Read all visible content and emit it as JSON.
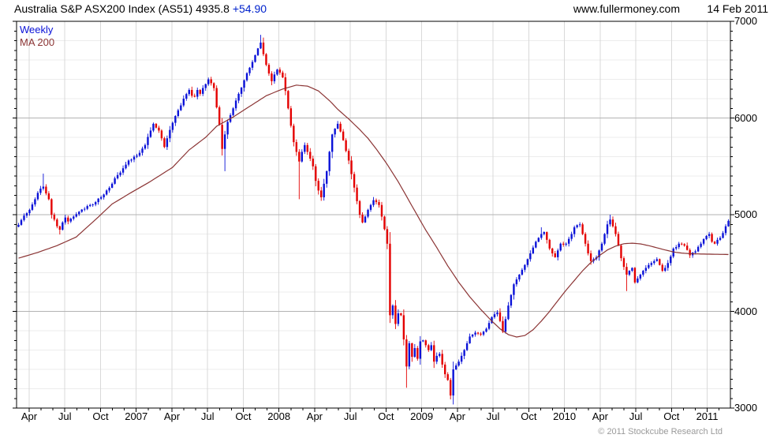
{
  "header": {
    "title": "Australia S&P ASX200 Index (AS51) 4935.8",
    "change": "+54.90",
    "site": "www.fullermoney.com",
    "date": "14 Feb 2011"
  },
  "legend": {
    "series": "Weekly",
    "ma": "MA 200"
  },
  "footer": {
    "copyright": "© 2011 Stockcube Research Ltd"
  },
  "chart_data": {
    "type": "candlestick",
    "title": "Australia S&P ASX200 Index (AS51)",
    "timeframe": "Weekly",
    "overlay": "MA 200",
    "last_price": 4935.8,
    "change": 54.9,
    "ylim": [
      3000,
      7000
    ],
    "y_ticks": [
      7000,
      6000,
      5000,
      4000,
      3000
    ],
    "y_minor_tick_step": 100,
    "y_minor_grid_step": 200,
    "x_tick_labels": [
      "Apr",
      "Jul",
      "Oct",
      "2007",
      "Apr",
      "Jul",
      "Oct",
      "2008",
      "Apr",
      "Jul",
      "Oct",
      "2009",
      "Apr",
      "Jul",
      "Oct",
      "2010",
      "Apr",
      "Jul",
      "Oct",
      "2011"
    ],
    "x_start": "Mar 2006",
    "x_end": "Feb 2011",
    "weeks": 259,
    "grid": true,
    "legend_position": "top-left",
    "colors": {
      "up": "#0a12d8",
      "down": "#e40000",
      "ma": "#8b3434",
      "grid_minor": "#ececec",
      "grid_major": "#b3b3b3",
      "grid_vert": "#d9d9d9",
      "axis": "#000000",
      "accent_change": "#0022cc",
      "copyright": "#9a9a9a"
    },
    "close_anchors": [
      [
        0,
        4895
      ],
      [
        2,
        4990
      ],
      [
        4,
        5050
      ],
      [
        6,
        5160
      ],
      [
        8,
        5270
      ],
      [
        9,
        5290
      ],
      [
        10,
        5220
      ],
      [
        11,
        5160
      ],
      [
        12,
        5000
      ],
      [
        13,
        4950
      ],
      [
        14,
        4880
      ],
      [
        15,
        4845
      ],
      [
        16,
        4920
      ],
      [
        17,
        4970
      ],
      [
        18,
        4930
      ],
      [
        20,
        4980
      ],
      [
        22,
        5030
      ],
      [
        24,
        5060
      ],
      [
        26,
        5100
      ],
      [
        28,
        5130
      ],
      [
        30,
        5180
      ],
      [
        32,
        5250
      ],
      [
        34,
        5320
      ],
      [
        36,
        5410
      ],
      [
        38,
        5480
      ],
      [
        40,
        5560
      ],
      [
        42,
        5600
      ],
      [
        44,
        5640
      ],
      [
        46,
        5720
      ],
      [
        48,
        5870
      ],
      [
        49,
        5940
      ],
      [
        50,
        5900
      ],
      [
        51,
        5870
      ],
      [
        52,
        5790
      ],
      [
        53,
        5700
      ],
      [
        54,
        5790
      ],
      [
        56,
        5950
      ],
      [
        58,
        6080
      ],
      [
        60,
        6200
      ],
      [
        62,
        6290
      ],
      [
        63,
        6230
      ],
      [
        64,
        6220
      ],
      [
        65,
        6290
      ],
      [
        66,
        6250
      ],
      [
        67,
        6310
      ],
      [
        68,
        6350
      ],
      [
        69,
        6400
      ],
      [
        70,
        6360
      ],
      [
        71,
        6310
      ],
      [
        72,
        6110
      ],
      [
        73,
        5930
      ],
      [
        74,
        5680
      ],
      [
        75,
        5830
      ],
      [
        76,
        5960
      ],
      [
        78,
        6100
      ],
      [
        79,
        6180
      ],
      [
        80,
        6250
      ],
      [
        82,
        6390
      ],
      [
        84,
        6520
      ],
      [
        85,
        6580
      ],
      [
        86,
        6650
      ],
      [
        87,
        6720
      ],
      [
        88,
        6780
      ],
      [
        89,
        6660
      ],
      [
        90,
        6550
      ],
      [
        91,
        6460
      ],
      [
        92,
        6380
      ],
      [
        93,
        6450
      ],
      [
        94,
        6500
      ],
      [
        95,
        6470
      ],
      [
        96,
        6420
      ],
      [
        97,
        6280
      ],
      [
        98,
        6100
      ],
      [
        99,
        5920
      ],
      [
        100,
        5750
      ],
      [
        101,
        5650
      ],
      [
        102,
        5550
      ],
      [
        103,
        5650
      ],
      [
        104,
        5720
      ],
      [
        105,
        5650
      ],
      [
        106,
        5580
      ],
      [
        107,
        5500
      ],
      [
        108,
        5350
      ],
      [
        109,
        5250
      ],
      [
        110,
        5180
      ],
      [
        111,
        5320
      ],
      [
        112,
        5450
      ],
      [
        113,
        5650
      ],
      [
        114,
        5830
      ],
      [
        115,
        5890
      ],
      [
        116,
        5940
      ],
      [
        117,
        5860
      ],
      [
        118,
        5770
      ],
      [
        119,
        5660
      ],
      [
        120,
        5560
      ],
      [
        121,
        5420
      ],
      [
        122,
        5280
      ],
      [
        123,
        5140
      ],
      [
        124,
        5000
      ],
      [
        125,
        4920
      ],
      [
        126,
        4980
      ],
      [
        127,
        5050
      ],
      [
        128,
        5100
      ],
      [
        129,
        5150
      ],
      [
        130,
        5130
      ],
      [
        131,
        5100
      ],
      [
        132,
        4980
      ],
      [
        133,
        4850
      ],
      [
        134,
        4700
      ],
      [
        135,
        3960
      ],
      [
        136,
        4060
      ],
      [
        137,
        3870
      ],
      [
        138,
        3980
      ],
      [
        139,
        3960
      ],
      [
        140,
        3710
      ],
      [
        141,
        3430
      ],
      [
        142,
        3670
      ],
      [
        143,
        3530
      ],
      [
        144,
        3620
      ],
      [
        145,
        3510
      ],
      [
        146,
        3690
      ],
      [
        147,
        3700
      ],
      [
        148,
        3650
      ],
      [
        149,
        3600
      ],
      [
        150,
        3650
      ],
      [
        151,
        3480
      ],
      [
        152,
        3540
      ],
      [
        153,
        3560
      ],
      [
        154,
        3450
      ],
      [
        155,
        3350
      ],
      [
        156,
        3290
      ],
      [
        157,
        3130
      ],
      [
        158,
        3400
      ],
      [
        159,
        3440
      ],
      [
        160,
        3480
      ],
      [
        161,
        3540
      ],
      [
        162,
        3600
      ],
      [
        163,
        3670
      ],
      [
        164,
        3740
      ],
      [
        165,
        3760
      ],
      [
        166,
        3780
      ],
      [
        167,
        3770
      ],
      [
        168,
        3760
      ],
      [
        169,
        3790
      ],
      [
        170,
        3820
      ],
      [
        171,
        3880
      ],
      [
        172,
        3940
      ],
      [
        173,
        3970
      ],
      [
        174,
        3990
      ],
      [
        175,
        3900
      ],
      [
        176,
        3790
      ],
      [
        177,
        3920
      ],
      [
        178,
        4060
      ],
      [
        179,
        4170
      ],
      [
        180,
        4280
      ],
      [
        181,
        4330
      ],
      [
        182,
        4380
      ],
      [
        183,
        4430
      ],
      [
        184,
        4480
      ],
      [
        185,
        4540
      ],
      [
        186,
        4600
      ],
      [
        187,
        4660
      ],
      [
        188,
        4720
      ],
      [
        189,
        4760
      ],
      [
        190,
        4800
      ],
      [
        191,
        4820
      ],
      [
        192,
        4740
      ],
      [
        193,
        4650
      ],
      [
        194,
        4600
      ],
      [
        195,
        4560
      ],
      [
        196,
        4630
      ],
      [
        197,
        4700
      ],
      [
        199,
        4700
      ],
      [
        200,
        4750
      ],
      [
        201,
        4800
      ],
      [
        202,
        4870
      ],
      [
        204,
        4900
      ],
      [
        205,
        4800
      ],
      [
        206,
        4700
      ],
      [
        207,
        4600
      ],
      [
        208,
        4520
      ],
      [
        209,
        4540
      ],
      [
        210,
        4560
      ],
      [
        211,
        4630
      ],
      [
        212,
        4700
      ],
      [
        213,
        4800
      ],
      [
        214,
        4900
      ],
      [
        215,
        4950
      ],
      [
        216,
        4880
      ],
      [
        217,
        4800
      ],
      [
        218,
        4680
      ],
      [
        219,
        4550
      ],
      [
        220,
        4460
      ],
      [
        221,
        4380
      ],
      [
        222,
        4420
      ],
      [
        223,
        4450
      ],
      [
        224,
        4300
      ],
      [
        225,
        4340
      ],
      [
        226,
        4380
      ],
      [
        227,
        4420
      ],
      [
        228,
        4450
      ],
      [
        229,
        4480
      ],
      [
        230,
        4500
      ],
      [
        231,
        4520
      ],
      [
        232,
        4540
      ],
      [
        233,
        4480
      ],
      [
        234,
        4420
      ],
      [
        235,
        4450
      ],
      [
        236,
        4500
      ],
      [
        238,
        4650
      ],
      [
        240,
        4700
      ],
      [
        242,
        4680
      ],
      [
        244,
        4580
      ],
      [
        246,
        4620
      ],
      [
        248,
        4700
      ],
      [
        250,
        4780
      ],
      [
        251,
        4800
      ],
      [
        252,
        4720
      ],
      [
        253,
        4700
      ],
      [
        254,
        4740
      ],
      [
        255,
        4760
      ],
      [
        256,
        4810
      ],
      [
        257,
        4880
      ],
      [
        258,
        4936
      ]
    ],
    "ma_anchors": [
      [
        0,
        4550
      ],
      [
        7,
        4610
      ],
      [
        14,
        4680
      ],
      [
        21,
        4770
      ],
      [
        28,
        4950
      ],
      [
        34,
        5110
      ],
      [
        41,
        5230
      ],
      [
        48,
        5345
      ],
      [
        56,
        5490
      ],
      [
        62,
        5670
      ],
      [
        68,
        5800
      ],
      [
        72,
        5915
      ],
      [
        78,
        6010
      ],
      [
        84,
        6120
      ],
      [
        90,
        6230
      ],
      [
        96,
        6300
      ],
      [
        101,
        6340
      ],
      [
        105,
        6330
      ],
      [
        109,
        6280
      ],
      [
        113,
        6180
      ],
      [
        116,
        6090
      ],
      [
        120,
        5990
      ],
      [
        124,
        5880
      ],
      [
        127,
        5790
      ],
      [
        130,
        5680
      ],
      [
        134,
        5520
      ],
      [
        138,
        5340
      ],
      [
        141,
        5190
      ],
      [
        144,
        5040
      ],
      [
        148,
        4840
      ],
      [
        152,
        4660
      ],
      [
        156,
        4470
      ],
      [
        160,
        4300
      ],
      [
        164,
        4150
      ],
      [
        168,
        4020
      ],
      [
        172,
        3900
      ],
      [
        175,
        3820
      ],
      [
        178,
        3760
      ],
      [
        181,
        3735
      ],
      [
        184,
        3750
      ],
      [
        187,
        3810
      ],
      [
        190,
        3900
      ],
      [
        193,
        4000
      ],
      [
        196,
        4110
      ],
      [
        199,
        4220
      ],
      [
        202,
        4320
      ],
      [
        205,
        4420
      ],
      [
        208,
        4505
      ],
      [
        211,
        4575
      ],
      [
        214,
        4635
      ],
      [
        217,
        4675
      ],
      [
        220,
        4700
      ],
      [
        223,
        4705
      ],
      [
        226,
        4698
      ],
      [
        229,
        4680
      ],
      [
        232,
        4658
      ],
      [
        235,
        4635
      ],
      [
        238,
        4615
      ],
      [
        241,
        4603
      ],
      [
        244,
        4597
      ],
      [
        248,
        4593
      ],
      [
        252,
        4591
      ],
      [
        256,
        4589
      ],
      [
        258,
        4588
      ]
    ],
    "wick_overrides": [
      [
        9,
        5425,
        null
      ],
      [
        15,
        null,
        4795
      ],
      [
        75,
        null,
        5450
      ],
      [
        88,
        6860,
        null
      ],
      [
        102,
        null,
        5160
      ],
      [
        135,
        null,
        3880
      ],
      [
        141,
        null,
        3210
      ],
      [
        157,
        null,
        3090
      ],
      [
        190,
        4870,
        null
      ],
      [
        215,
        5000,
        null
      ],
      [
        221,
        null,
        4210
      ]
    ]
  }
}
